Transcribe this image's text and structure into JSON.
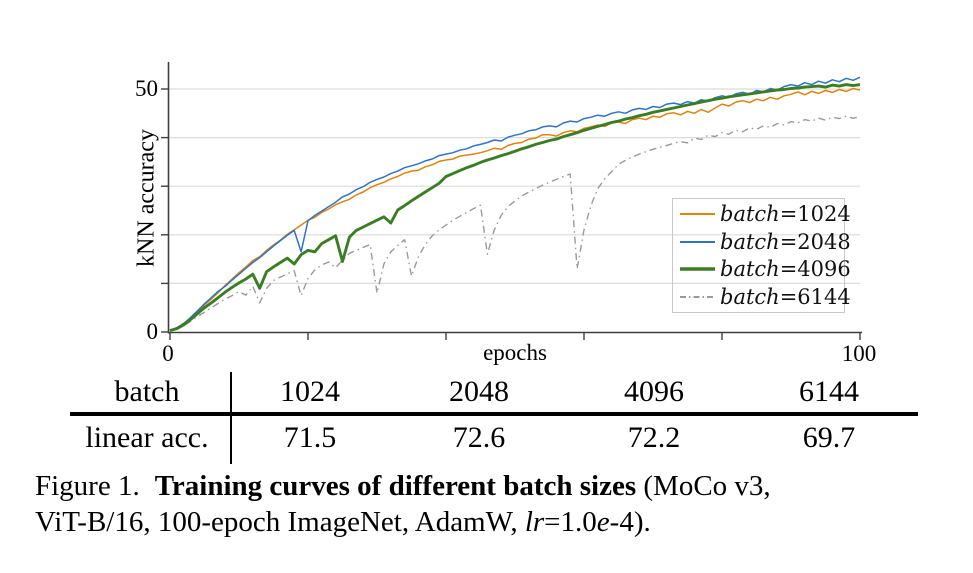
{
  "chart_data": {
    "type": "line",
    "title": "",
    "xlabel": "epochs",
    "ylabel": "kNN accuracy",
    "xlim": [
      0,
      100
    ],
    "ylim": [
      0,
      56
    ],
    "grid": "horizontal",
    "y_grid_step": 10,
    "x_minor_tick_step": 20,
    "x_tick_labels": [
      {
        "value": 0,
        "label": "0"
      },
      {
        "value": 100,
        "label": "100"
      }
    ],
    "y_tick_labels": [
      {
        "value": 0,
        "label": "0"
      },
      {
        "value": 50,
        "label": "50"
      }
    ],
    "legend": {
      "position": "middle-right",
      "entries": [
        {
          "italic": "batch",
          "rest": "=1024"
        },
        {
          "italic": "batch",
          "rest": "=2048"
        },
        {
          "italic": "batch",
          "rest": "=4096"
        },
        {
          "italic": "batch",
          "rest": "=6144"
        }
      ]
    },
    "colors": {
      "grid": "#DCDCDC",
      "axis": "#3F3F3F",
      "legend_border": "#C9C9C9"
    },
    "x": [
      0,
      1,
      2,
      3,
      4,
      5,
      6,
      7,
      8,
      9,
      10,
      11,
      12,
      13,
      14,
      15,
      16,
      17,
      18,
      19,
      20,
      21,
      22,
      23,
      24,
      25,
      26,
      27,
      28,
      29,
      30,
      31,
      32,
      33,
      34,
      35,
      36,
      37,
      38,
      39,
      40,
      41,
      42,
      43,
      44,
      45,
      46,
      47,
      48,
      49,
      50,
      51,
      52,
      53,
      54,
      55,
      56,
      57,
      58,
      59,
      60,
      61,
      62,
      63,
      64,
      65,
      66,
      67,
      68,
      69,
      70,
      71,
      72,
      73,
      74,
      75,
      76,
      77,
      78,
      79,
      80,
      81,
      82,
      83,
      84,
      85,
      86,
      87,
      88,
      89,
      90,
      91,
      92,
      93,
      94,
      95,
      96,
      97,
      98,
      99,
      100
    ],
    "series": [
      {
        "name": "batch=1024",
        "color": "#E2820D",
        "line_width": 1.5,
        "dash": null,
        "values": [
          0.3,
          0.8,
          1.7,
          2.8,
          4.2,
          5.6,
          6.8,
          8.1,
          9.6,
          10.9,
          12.2,
          13.4,
          14.7,
          15.5,
          16.8,
          17.9,
          18.9,
          20.1,
          21.0,
          22.0,
          23.0,
          23.6,
          24.6,
          25.3,
          26.2,
          26.8,
          27.3,
          28.2,
          28.8,
          29.7,
          30.3,
          30.8,
          31.5,
          32.0,
          32.7,
          33.1,
          33.3,
          34.0,
          34.4,
          35.1,
          35.4,
          35.6,
          36.2,
          36.4,
          36.6,
          36.9,
          37.3,
          37.8,
          37.6,
          38.4,
          38.8,
          39.0,
          39.7,
          39.9,
          40.6,
          40.6,
          40.3,
          41.0,
          41.4,
          41.2,
          41.9,
          42.2,
          42.6,
          42.3,
          43.0,
          43.2,
          42.9,
          43.7,
          44.0,
          43.7,
          44.4,
          44.2,
          44.9,
          45.1,
          44.7,
          45.4,
          45.0,
          45.8,
          45.2,
          46.1,
          46.9,
          46.5,
          47.3,
          47.6,
          47.2,
          47.9,
          47.6,
          48.3,
          47.9,
          48.6,
          48.9,
          49.4,
          48.8,
          49.5,
          49.1,
          49.7,
          49.3,
          49.9,
          49.5,
          50.1,
          49.8
        ]
      },
      {
        "name": "batch=2048",
        "color": "#2E73C9",
        "line_width": 1.5,
        "dash": null,
        "values": [
          0.3,
          0.9,
          1.8,
          3.0,
          4.4,
          5.8,
          7.1,
          8.4,
          9.4,
          10.7,
          11.9,
          13.1,
          14.3,
          15.3,
          16.5,
          17.7,
          18.8,
          19.9,
          20.9,
          16.5,
          22.9,
          24.0,
          24.9,
          25.8,
          26.7,
          27.8,
          28.4,
          29.3,
          29.9,
          30.8,
          31.4,
          31.9,
          32.6,
          33.1,
          33.8,
          34.2,
          34.6,
          35.2,
          35.6,
          36.3,
          36.6,
          36.9,
          37.4,
          37.7,
          38.3,
          38.6,
          39.0,
          39.5,
          39.3,
          40.1,
          40.5,
          40.8,
          41.4,
          41.6,
          42.2,
          42.4,
          42.2,
          43.0,
          43.4,
          43.2,
          43.9,
          44.2,
          44.6,
          44.4,
          45.0,
          45.3,
          45.0,
          45.7,
          46.0,
          45.8,
          46.4,
          46.2,
          46.9,
          47.1,
          46.8,
          47.4,
          47.1,
          47.8,
          47.5,
          48.2,
          48.6,
          48.3,
          49.0,
          49.3,
          48.9,
          49.7,
          49.4,
          50.1,
          49.8,
          50.5,
          50.9,
          50.6,
          51.3,
          50.9,
          51.6,
          51.2,
          51.9,
          51.5,
          52.2,
          51.8,
          52.4
        ]
      },
      {
        "name": "batch=4096",
        "color": "#3B7D23",
        "line_width": 2.9,
        "dash": null,
        "values": [
          0.3,
          0.7,
          1.5,
          2.6,
          3.8,
          5.0,
          6.0,
          7.1,
          8.2,
          9.2,
          10.1,
          10.9,
          11.9,
          9.0,
          12.4,
          13.4,
          14.3,
          15.2,
          14.0,
          15.9,
          16.8,
          16.5,
          18.2,
          19.0,
          19.8,
          14.5,
          19.5,
          20.9,
          21.6,
          22.3,
          23.0,
          23.7,
          22.4,
          25.1,
          26.0,
          27.0,
          27.9,
          28.8,
          29.7,
          30.6,
          32.0,
          32.6,
          33.2,
          33.8,
          34.3,
          34.9,
          35.4,
          35.8,
          36.3,
          36.7,
          37.2,
          37.7,
          38.1,
          38.6,
          39.0,
          39.4,
          39.7,
          40.2,
          40.6,
          41.0,
          41.5,
          41.9,
          42.3,
          42.7,
          43.1,
          43.4,
          43.8,
          44.1,
          44.5,
          44.8,
          45.2,
          45.5,
          45.8,
          46.1,
          46.4,
          46.7,
          47.0,
          47.3,
          47.6,
          47.9,
          48.1,
          48.4,
          48.6,
          48.8,
          49.0,
          49.2,
          49.4,
          49.6,
          49.8,
          49.9,
          50.1,
          50.2,
          50.4,
          50.5,
          50.6,
          50.4,
          50.8,
          50.6,
          50.9,
          50.7,
          50.9
        ]
      },
      {
        "name": "batch=6144",
        "color": "#9A9A9A",
        "line_width": 1.4,
        "dash": "dash-dot",
        "values": [
          0.2,
          0.6,
          1.3,
          2.2,
          3.2,
          4.1,
          5.0,
          5.9,
          6.8,
          7.5,
          8.3,
          7.6,
          9.4,
          6.0,
          9.0,
          10.6,
          11.3,
          12.0,
          12.6,
          7.5,
          11.0,
          12.8,
          13.8,
          14.4,
          13.2,
          14.8,
          16.2,
          16.8,
          17.4,
          18.0,
          8.0,
          14.0,
          16.5,
          17.8,
          19.0,
          11.5,
          15.5,
          18.0,
          19.8,
          21.0,
          22.0,
          23.0,
          23.8,
          24.6,
          25.4,
          26.1,
          16.0,
          21.0,
          24.0,
          25.8,
          27.0,
          28.0,
          28.8,
          29.5,
          30.2,
          30.8,
          31.4,
          32.0,
          32.5,
          13.0,
          21.0,
          26.0,
          29.5,
          31.5,
          33.0,
          34.5,
          35.3,
          36.0,
          36.6,
          37.1,
          37.6,
          38.0,
          38.4,
          38.8,
          39.2,
          38.9,
          39.9,
          39.6,
          40.5,
          40.2,
          41.0,
          40.7,
          41.5,
          41.2,
          42.0,
          41.7,
          42.4,
          42.1,
          42.9,
          42.6,
          43.3,
          43.0,
          43.7,
          43.4,
          44.0,
          43.6,
          44.2,
          43.9,
          44.4,
          44.0,
          44.3
        ]
      }
    ]
  },
  "table": {
    "row1_label": "batch",
    "row2_label": "linear acc.",
    "columns": [
      "1024",
      "2048",
      "4096",
      "6144"
    ],
    "values": [
      "71.5",
      "72.6",
      "72.2",
      "69.7"
    ]
  },
  "caption": {
    "line1": [
      {
        "text": "Figure 1.",
        "style": "normal"
      },
      {
        "text": "Training curves of different batch sizes",
        "style": "bold"
      },
      {
        "text": " (MoCo v3,",
        "style": "normal"
      }
    ],
    "line2": [
      {
        "text": "ViT-B/16, 100-epoch ImageNet, AdamW, ",
        "style": "normal"
      },
      {
        "text": "lr",
        "style": "italic"
      },
      {
        "text": "=1.0",
        "style": "normal"
      },
      {
        "text": "e",
        "style": "italic"
      },
      {
        "text": "-4).",
        "style": "normal"
      }
    ]
  }
}
